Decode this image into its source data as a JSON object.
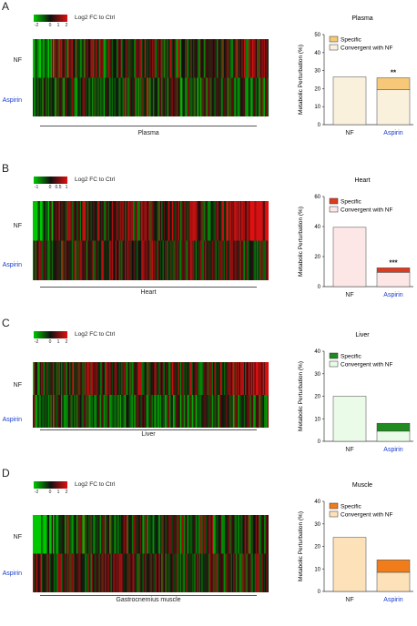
{
  "heatmap_legend": {
    "title": "Log2 FC to Ctrl",
    "colors": {
      "low": "#00c800",
      "mid": "#101010",
      "high": "#e01010"
    }
  },
  "row_labels": {
    "nf": "NF",
    "aspirin": "Aspirin"
  },
  "colors": {
    "aspirin_label": "#1a3ccc",
    "star_text": "#222222"
  },
  "panels": [
    {
      "letter": "A",
      "ticks": [
        "-2",
        "0",
        "1",
        "2"
      ],
      "tissue": "Plasma",
      "heat": {
        "seed": 11,
        "nf_bias": 0.0,
        "nf_left_green": 0.5,
        "nf_right_red": 0.2,
        "asp_bias": -0.15
      },
      "bar_colors": {
        "specific": "#f6c878",
        "convergent": "#faf1dc"
      },
      "chart_data": {
        "type": "bar",
        "title": "Plasma",
        "ylabel": "Metabolic Perturbation (%)",
        "categories": [
          "NF",
          "Aspirin"
        ],
        "ylim": [
          0,
          50
        ],
        "yticks": [
          0,
          10,
          20,
          30,
          40,
          50
        ],
        "series": [
          {
            "name": "Convergent with NF",
            "values": [
              26.5,
              19.5
            ]
          },
          {
            "name": "Specific",
            "values": [
              0,
              6.5
            ]
          }
        ],
        "annotation": "**",
        "legend_position": "top-left"
      }
    },
    {
      "letter": "B",
      "ticks": [
        "-1",
        "0",
        "0.5",
        "1"
      ],
      "tissue": "Heart",
      "heat": {
        "seed": 23,
        "nf_bias": 0.15,
        "nf_left_green": 0.8,
        "nf_right_red": 0.9,
        "asp_bias": 0.1
      },
      "bar_colors": {
        "specific": "#dd3a1e",
        "convergent": "#fde6e6"
      },
      "chart_data": {
        "type": "bar",
        "title": "Heart",
        "ylabel": "Metabolic Perturbation (%)",
        "categories": [
          "NF",
          "Aspirin"
        ],
        "ylim": [
          0,
          60
        ],
        "yticks": [
          0,
          20,
          40,
          60
        ],
        "series": [
          {
            "name": "Convergent with NF",
            "values": [
              39.5,
              9.5
            ]
          },
          {
            "name": "Specific",
            "values": [
              0,
              3
            ]
          }
        ],
        "annotation": "***",
        "legend_position": "top-left"
      }
    },
    {
      "letter": "C",
      "ticks": [
        "-2",
        "0",
        "1",
        "2"
      ],
      "tissue": "Liver",
      "heat": {
        "seed": 37,
        "nf_bias": 0.1,
        "nf_left_green": 0.3,
        "nf_right_red": 0.8,
        "asp_bias": -0.2
      },
      "bar_colors": {
        "specific": "#1f8a1f",
        "convergent": "#eafbe8"
      },
      "chart_data": {
        "type": "bar",
        "title": "Liver",
        "ylabel": "Metabolic Perturbation (%)",
        "categories": [
          "NF",
          "Aspirin"
        ],
        "ylim": [
          0,
          40
        ],
        "yticks": [
          0,
          10,
          20,
          30,
          40
        ],
        "series": [
          {
            "name": "Convergent with NF",
            "values": [
              20,
              4.5
            ]
          },
          {
            "name": "Specific",
            "values": [
              0,
              3.5
            ]
          }
        ],
        "annotation": "",
        "legend_position": "top-left"
      }
    },
    {
      "letter": "D",
      "ticks": [
        "-2",
        "0",
        "1",
        "2"
      ],
      "tissue": "Gastrocnemius muscle",
      "heat": {
        "seed": 53,
        "nf_bias": -0.1,
        "nf_left_green": 0.9,
        "nf_right_red": 0.1,
        "asp_bias": 0.05
      },
      "bar_colors": {
        "specific": "#f07d1a",
        "convergent": "#fde1b8"
      },
      "chart_data": {
        "type": "bar",
        "title": "Muscle",
        "ylabel": "Metabolic Perturbation (%)",
        "categories": [
          "NF",
          "Aspirin"
        ],
        "ylim": [
          0,
          40
        ],
        "yticks": [
          0,
          10,
          20,
          30,
          40
        ],
        "series": [
          {
            "name": "Convergent with NF",
            "values": [
              24,
              8.5
            ]
          },
          {
            "name": "Specific",
            "values": [
              0,
              5.5
            ]
          }
        ],
        "annotation": "",
        "legend_position": "top-left"
      }
    }
  ]
}
